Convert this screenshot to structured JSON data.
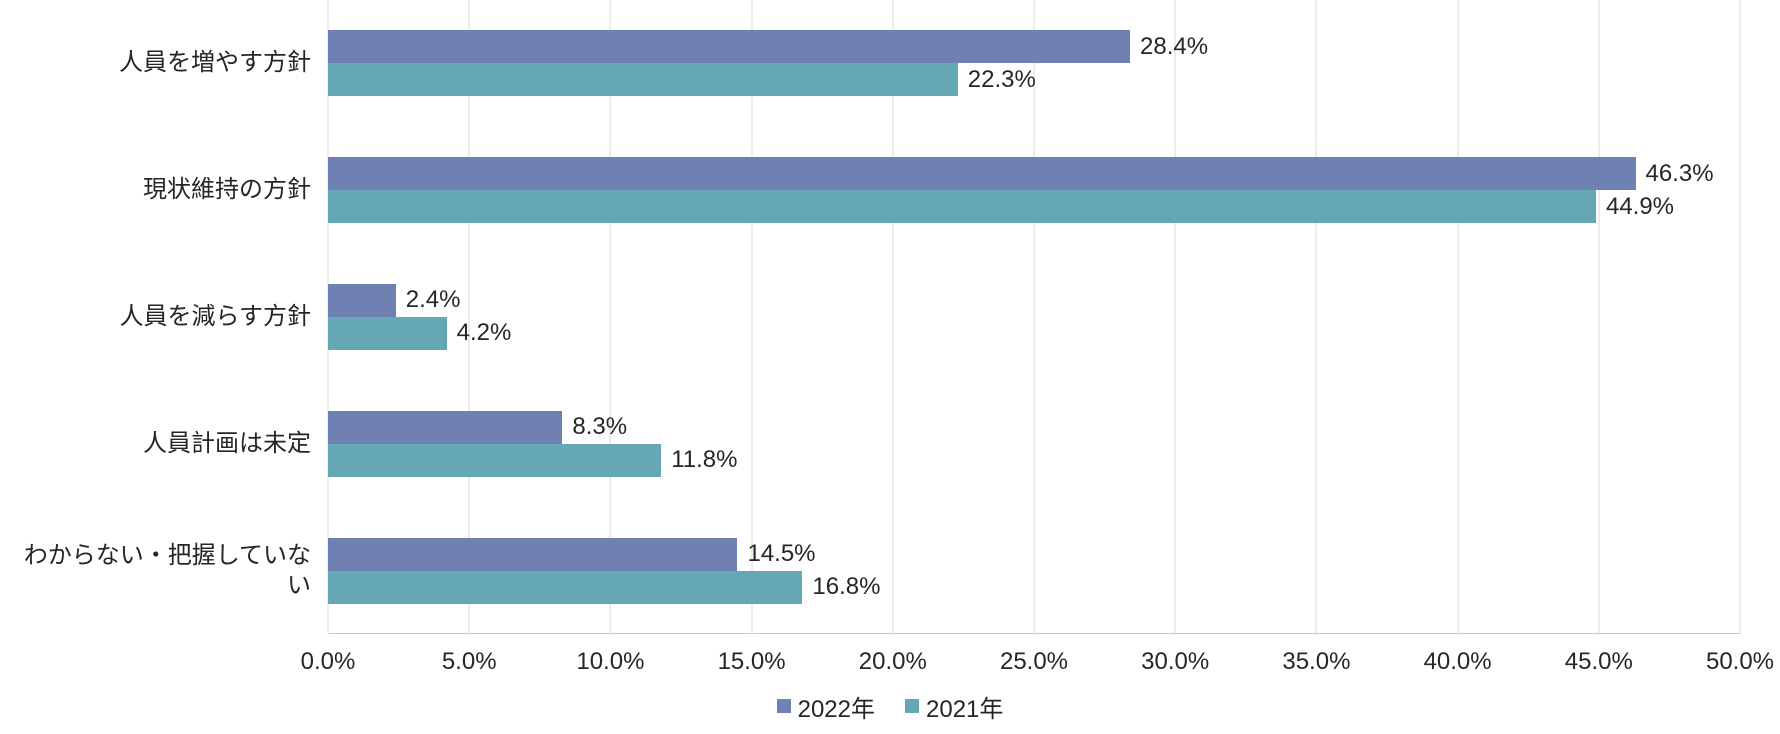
{
  "chart_data": {
    "type": "bar",
    "orientation": "horizontal",
    "title": "",
    "xlabel": "",
    "ylabel": "",
    "categories": [
      "人員を増やす方針",
      "現状維持の方針",
      "人員を減らす方針",
      "人員計画は未定",
      "わからない・把握していない"
    ],
    "series": [
      {
        "name": "2022年",
        "color": "#6F80B2",
        "values": [
          28.4,
          46.3,
          2.4,
          8.3,
          14.5
        ],
        "labels": [
          "28.4%",
          "46.3%",
          "2.4%",
          "8.3%",
          "14.5%"
        ]
      },
      {
        "name": "2021年",
        "color": "#66A7B5",
        "values": [
          22.3,
          44.9,
          4.2,
          11.8,
          16.8
        ],
        "labels": [
          "22.3%",
          "44.9%",
          "4.2%",
          "11.8%",
          "16.8%"
        ]
      }
    ],
    "xlim": [
      0,
      50
    ],
    "x_tick_labels": [
      "0.0%",
      "5.0%",
      "10.0%",
      "15.0%",
      "20.0%",
      "25.0%",
      "30.0%",
      "35.0%",
      "40.0%",
      "45.0%",
      "50.0%"
    ],
    "grid": true,
    "gridline_color": "#D9D9D9",
    "axis_line_color": "#C9C9C9",
    "text_color": "#262626",
    "legend_position": "bottom"
  }
}
